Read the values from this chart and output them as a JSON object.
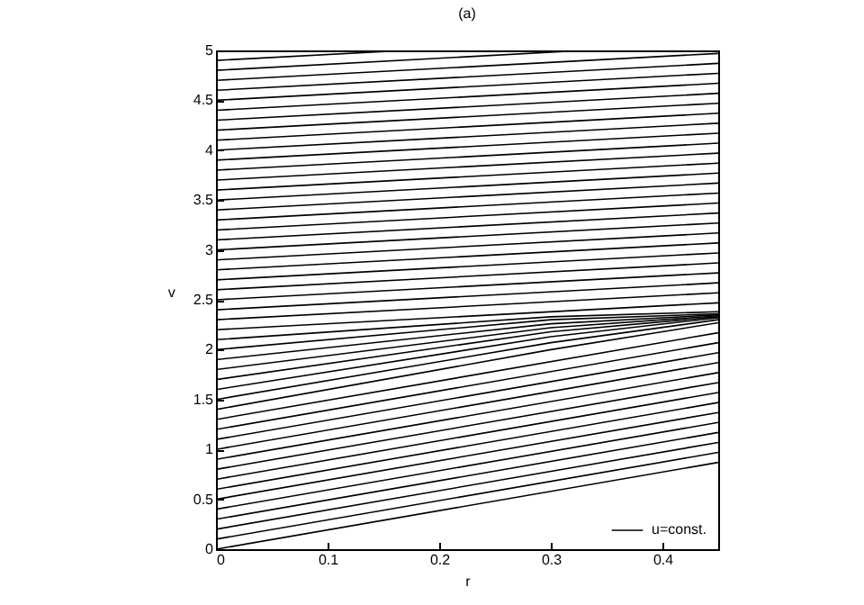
{
  "chart_data": {
    "type": "line",
    "title": "(a)",
    "xlabel": "r",
    "ylabel": "v",
    "xlim": [
      0,
      0.45
    ],
    "xticks": [
      0,
      0.1,
      0.2,
      0.3,
      0.4
    ],
    "ylim": [
      0,
      5
    ],
    "yticks": [
      0,
      0.5,
      1,
      1.5,
      2,
      2.5,
      3,
      3.5,
      4,
      4.5,
      5
    ],
    "grid": false,
    "legend": "bottom right",
    "marker": "none",
    "line_style": "solid",
    "series": [
      {
        "name": "u=const.",
        "color": "#000000",
        "x": [
          0,
          0.45
        ],
        "values": [
          0,
          0.87
        ]
      },
      {
        "color": "#000000",
        "x": [
          0,
          0.45
        ],
        "values": [
          0.1,
          0.97
        ]
      },
      {
        "color": "#000000",
        "x": [
          0,
          0.45
        ],
        "values": [
          0.2,
          1.07
        ]
      },
      {
        "color": "#000000",
        "x": [
          0,
          0.45
        ],
        "values": [
          0.3,
          1.17
        ]
      },
      {
        "color": "#000000",
        "x": [
          0,
          0.45
        ],
        "values": [
          0.4,
          1.27
        ]
      },
      {
        "color": "#000000",
        "x": [
          0,
          0.45
        ],
        "values": [
          0.5,
          1.37
        ]
      },
      {
        "color": "#000000",
        "x": [
          0,
          0.45
        ],
        "values": [
          0.6,
          1.47
        ]
      },
      {
        "color": "#000000",
        "x": [
          0,
          0.45
        ],
        "values": [
          0.7,
          1.57
        ]
      },
      {
        "color": "#000000",
        "x": [
          0,
          0.45
        ],
        "values": [
          0.8,
          1.67
        ]
      },
      {
        "color": "#000000",
        "x": [
          0,
          0.45
        ],
        "values": [
          0.9,
          1.77
        ]
      },
      {
        "color": "#000000",
        "x": [
          0,
          0.45
        ],
        "values": [
          1.0,
          1.87
        ]
      },
      {
        "color": "#000000",
        "x": [
          0,
          0.45
        ],
        "values": [
          1.1,
          1.97
        ]
      },
      {
        "color": "#000000",
        "x": [
          0,
          0.45
        ],
        "values": [
          1.2,
          2.07
        ]
      },
      {
        "color": "#000000",
        "x": [
          0,
          0.45
        ],
        "values": [
          1.3,
          2.17
        ]
      },
      {
        "color": "#000000",
        "x": [
          0,
          0.3,
          0.45
        ],
        "values": [
          1.4,
          2.0,
          2.27
        ]
      },
      {
        "color": "#000000",
        "x": [
          0,
          0.3,
          0.45
        ],
        "values": [
          1.5,
          2.07,
          2.3
        ]
      },
      {
        "color": "#000000",
        "x": [
          0,
          0.3,
          0.45
        ],
        "values": [
          1.6,
          2.13,
          2.32
        ]
      },
      {
        "color": "#000000",
        "x": [
          0,
          0.3,
          0.45
        ],
        "values": [
          1.7,
          2.18,
          2.33
        ]
      },
      {
        "color": "#000000",
        "x": [
          0,
          0.3,
          0.45
        ],
        "values": [
          1.8,
          2.22,
          2.34
        ]
      },
      {
        "color": "#000000",
        "x": [
          0,
          0.3,
          0.45
        ],
        "values": [
          1.9,
          2.26,
          2.35
        ]
      },
      {
        "color": "#000000",
        "x": [
          0,
          0.3,
          0.45
        ],
        "values": [
          2.0,
          2.3,
          2.36
        ]
      },
      {
        "color": "#000000",
        "x": [
          0,
          0.3,
          0.45
        ],
        "values": [
          2.1,
          2.33,
          2.38
        ]
      },
      {
        "color": "#000000",
        "x": [
          0,
          0.45
        ],
        "values": [
          2.2,
          2.47
        ]
      },
      {
        "color": "#000000",
        "x": [
          0,
          0.45
        ],
        "values": [
          2.3,
          2.57
        ]
      },
      {
        "color": "#000000",
        "x": [
          0,
          0.45
        ],
        "values": [
          2.4,
          2.67
        ]
      },
      {
        "color": "#000000",
        "x": [
          0,
          0.45
        ],
        "values": [
          2.5,
          2.77
        ]
      },
      {
        "color": "#000000",
        "x": [
          0,
          0.45
        ],
        "values": [
          2.6,
          2.87
        ]
      },
      {
        "color": "#000000",
        "x": [
          0,
          0.45
        ],
        "values": [
          2.7,
          2.97
        ]
      },
      {
        "color": "#000000",
        "x": [
          0,
          0.45
        ],
        "values": [
          2.8,
          3.07
        ]
      },
      {
        "color": "#000000",
        "x": [
          0,
          0.45
        ],
        "values": [
          2.9,
          3.17
        ]
      },
      {
        "color": "#000000",
        "x": [
          0,
          0.45
        ],
        "values": [
          3.0,
          3.27
        ]
      },
      {
        "color": "#000000",
        "x": [
          0,
          0.45
        ],
        "values": [
          3.1,
          3.37
        ]
      },
      {
        "color": "#000000",
        "x": [
          0,
          0.45
        ],
        "values": [
          3.2,
          3.47
        ]
      },
      {
        "color": "#000000",
        "x": [
          0,
          0.45
        ],
        "values": [
          3.3,
          3.57
        ]
      },
      {
        "color": "#000000",
        "x": [
          0,
          0.45
        ],
        "values": [
          3.4,
          3.67
        ]
      },
      {
        "color": "#000000",
        "x": [
          0,
          0.45
        ],
        "values": [
          3.5,
          3.77
        ]
      },
      {
        "color": "#000000",
        "x": [
          0,
          0.45
        ],
        "values": [
          3.6,
          3.87
        ]
      },
      {
        "color": "#000000",
        "x": [
          0,
          0.45
        ],
        "values": [
          3.7,
          3.97
        ]
      },
      {
        "color": "#000000",
        "x": [
          0,
          0.45
        ],
        "values": [
          3.8,
          4.07
        ]
      },
      {
        "color": "#000000",
        "x": [
          0,
          0.45
        ],
        "values": [
          3.9,
          4.17
        ]
      },
      {
        "color": "#000000",
        "x": [
          0,
          0.45
        ],
        "values": [
          4.0,
          4.27
        ]
      },
      {
        "color": "#000000",
        "x": [
          0,
          0.45
        ],
        "values": [
          4.1,
          4.37
        ]
      },
      {
        "color": "#000000",
        "x": [
          0,
          0.45
        ],
        "values": [
          4.2,
          4.47
        ]
      },
      {
        "color": "#000000",
        "x": [
          0,
          0.45
        ],
        "values": [
          4.3,
          4.57
        ]
      },
      {
        "color": "#000000",
        "x": [
          0,
          0.45
        ],
        "values": [
          4.4,
          4.67
        ]
      },
      {
        "color": "#000000",
        "x": [
          0,
          0.45
        ],
        "values": [
          4.5,
          4.77
        ]
      },
      {
        "color": "#000000",
        "x": [
          0,
          0.45
        ],
        "values": [
          4.6,
          4.87
        ]
      },
      {
        "color": "#000000",
        "x": [
          0,
          0.45
        ],
        "values": [
          4.7,
          4.97
        ]
      },
      {
        "color": "#000000",
        "x": [
          0,
          0.33
        ],
        "values": [
          4.8,
          5.0
        ]
      },
      {
        "color": "#000000",
        "x": [
          0,
          0.17
        ],
        "values": [
          4.9,
          5.0
        ]
      }
    ]
  }
}
